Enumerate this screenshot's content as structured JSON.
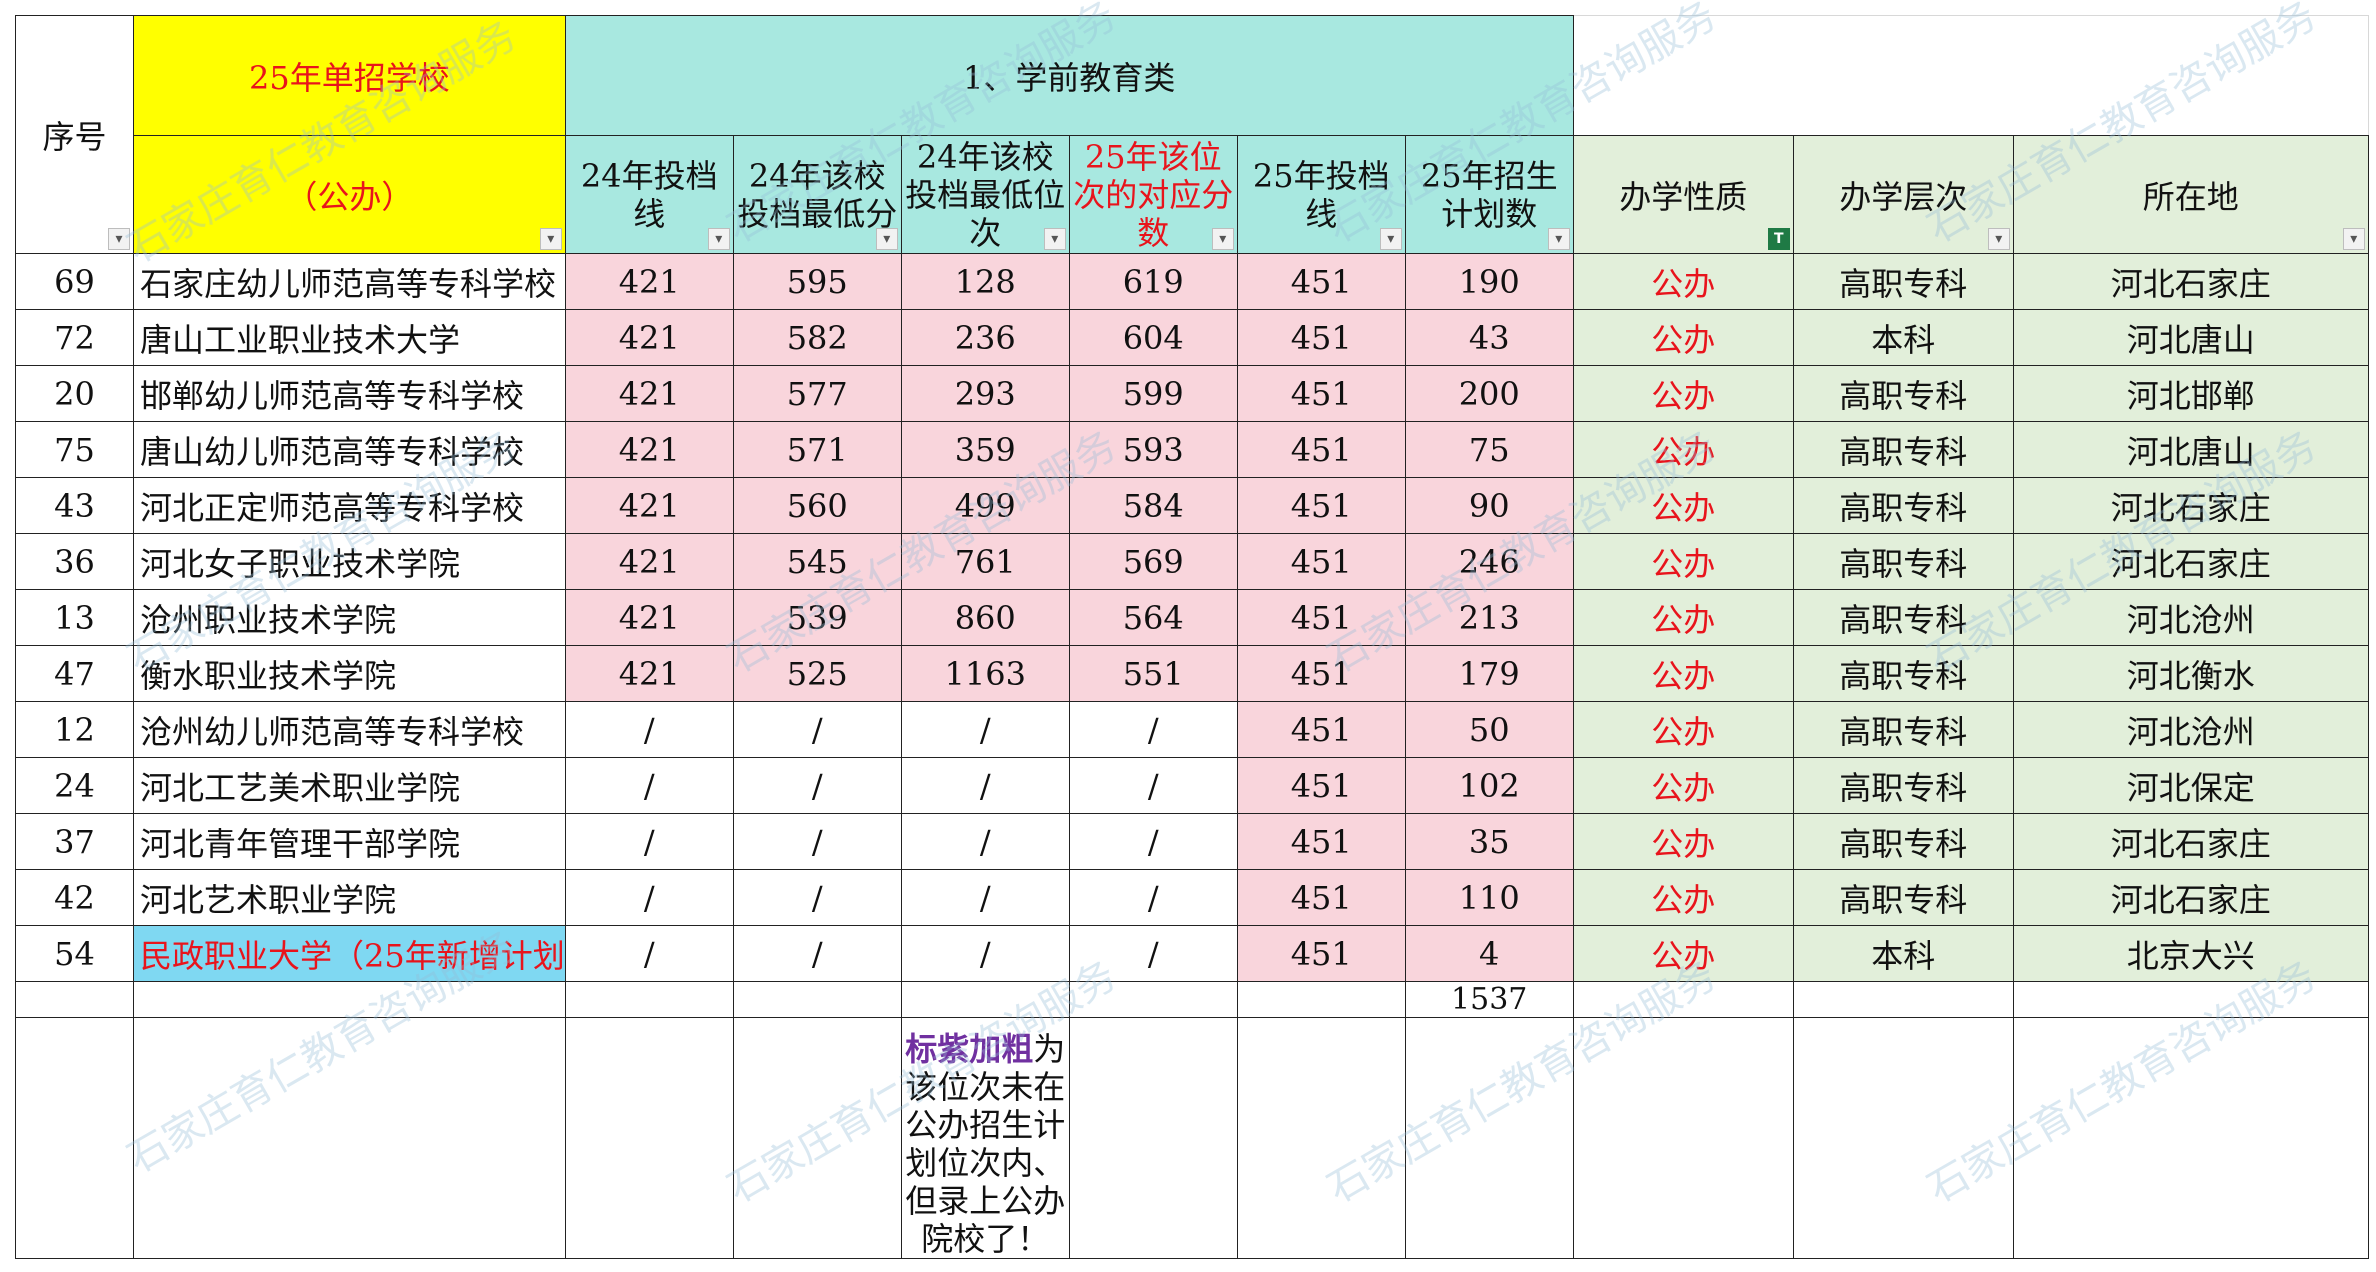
{
  "header": {
    "seq": "序号",
    "title": "25年单招学校",
    "subtitle": "（公办）",
    "category": "1、学前教育类",
    "cols": [
      "24年投档线",
      "24年该校投档最低分",
      "24年该校投档最低位次",
      "25年该位次的对应分数",
      "25年投档线",
      "25年招生计划数"
    ],
    "extra_cols": [
      "办学性质",
      "办学层次",
      "所在地"
    ]
  },
  "rows": [
    {
      "seq": "69",
      "name": "石家庄幼儿师范高等专科学校",
      "c1": "421",
      "c2": "595",
      "c3": "128",
      "c4": "619",
      "c5": "451",
      "c6": "190",
      "nature": "公办",
      "level": "高职专科",
      "loc": "河北石家庄"
    },
    {
      "seq": "72",
      "name": "唐山工业职业技术大学",
      "c1": "421",
      "c2": "582",
      "c3": "236",
      "c4": "604",
      "c5": "451",
      "c6": "43",
      "nature": "公办",
      "level": "本科",
      "loc": "河北唐山"
    },
    {
      "seq": "20",
      "name": "邯郸幼儿师范高等专科学校",
      "c1": "421",
      "c2": "577",
      "c3": "293",
      "c4": "599",
      "c5": "451",
      "c6": "200",
      "nature": "公办",
      "level": "高职专科",
      "loc": "河北邯郸"
    },
    {
      "seq": "75",
      "name": "唐山幼儿师范高等专科学校",
      "c1": "421",
      "c2": "571",
      "c3": "359",
      "c4": "593",
      "c5": "451",
      "c6": "75",
      "nature": "公办",
      "level": "高职专科",
      "loc": "河北唐山"
    },
    {
      "seq": "43",
      "name": "河北正定师范高等专科学校",
      "c1": "421",
      "c2": "560",
      "c3": "499",
      "c4": "584",
      "c5": "451",
      "c6": "90",
      "nature": "公办",
      "level": "高职专科",
      "loc": "河北石家庄"
    },
    {
      "seq": "36",
      "name": "河北女子职业技术学院",
      "c1": "421",
      "c2": "545",
      "c3": "761",
      "c4": "569",
      "c5": "451",
      "c6": "246",
      "nature": "公办",
      "level": "高职专科",
      "loc": "河北石家庄"
    },
    {
      "seq": "13",
      "name": "沧州职业技术学院",
      "c1": "421",
      "c2": "539",
      "c3": "860",
      "c4": "564",
      "c5": "451",
      "c6": "213",
      "nature": "公办",
      "level": "高职专科",
      "loc": "河北沧州"
    },
    {
      "seq": "47",
      "name": "衡水职业技术学院",
      "c1": "421",
      "c2": "525",
      "c3": "1163",
      "c4": "551",
      "c5": "451",
      "c6": "179",
      "nature": "公办",
      "level": "高职专科",
      "loc": "河北衡水"
    },
    {
      "seq": "12",
      "name": "沧州幼儿师范高等专科学校",
      "c1": "/",
      "c2": "/",
      "c3": "/",
      "c4": "/",
      "c5": "451",
      "c6": "50",
      "nature": "公办",
      "level": "高职专科",
      "loc": "河北沧州"
    },
    {
      "seq": "24",
      "name": "河北工艺美术职业学院",
      "c1": "/",
      "c2": "/",
      "c3": "/",
      "c4": "/",
      "c5": "451",
      "c6": "102",
      "nature": "公办",
      "level": "高职专科",
      "loc": "河北保定"
    },
    {
      "seq": "37",
      "name": "河北青年管理干部学院",
      "c1": "/",
      "c2": "/",
      "c3": "/",
      "c4": "/",
      "c5": "451",
      "c6": "35",
      "nature": "公办",
      "level": "高职专科",
      "loc": "河北石家庄"
    },
    {
      "seq": "42",
      "name": "河北艺术职业学院",
      "c1": "/",
      "c2": "/",
      "c3": "/",
      "c4": "/",
      "c5": "451",
      "c6": "110",
      "nature": "公办",
      "level": "高职专科",
      "loc": "河北石家庄"
    },
    {
      "seq": "54",
      "name": "民政职业大学（25年新增计划",
      "c1": "/",
      "c2": "/",
      "c3": "/",
      "c4": "/",
      "c5": "451",
      "c6": "4",
      "nature": "公办",
      "level": "本科",
      "loc": "北京大兴"
    }
  ],
  "total": "1537",
  "note": {
    "emph": "标紫加粗",
    "rest": "为该位次未在公办招生计划位次内、但录上公办院校了！"
  },
  "watermark": "石家庄育仁教育咨询服务",
  "colors": {
    "title_bg": "#ffff00",
    "header_bg": "#a8e8e0",
    "pink": "#f9d5dc",
    "green": "#e2efda",
    "blue": "#7fd8f2",
    "red_text": "#e8141c",
    "purple_text": "#7030a0"
  }
}
